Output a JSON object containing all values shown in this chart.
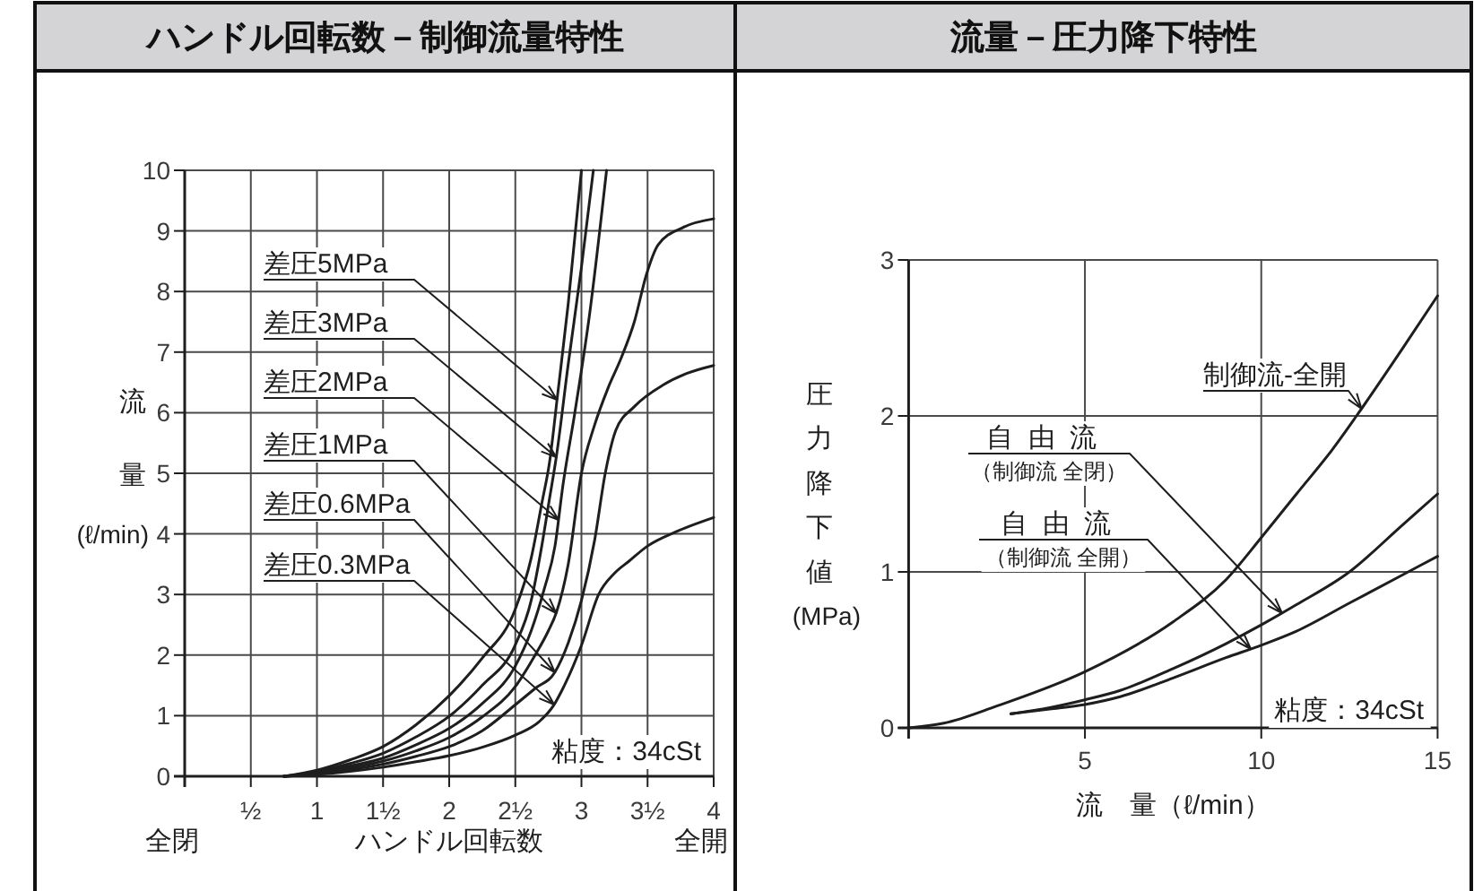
{
  "chart_data": [
    {
      "type": "line",
      "title": "ハンドル回転数－制御流量特性",
      "xlabel": "ハンドル回転数",
      "ylabel": "流量(ℓ/min)",
      "xlim": [
        0,
        4
      ],
      "ylim": [
        0,
        10
      ],
      "xticks": [
        {
          "value": 0.5,
          "label": "½"
        },
        1,
        {
          "value": 1.5,
          "label": "1½"
        },
        2,
        {
          "value": 2.5,
          "label": "2½"
        },
        3,
        {
          "value": 3.5,
          "label": "3½"
        },
        4
      ],
      "yticks": [
        0,
        1,
        2,
        3,
        4,
        5,
        6,
        7,
        8,
        9,
        10
      ],
      "grid": true,
      "series": [
        {
          "name": "差圧5MPa",
          "color": "#1e1e1e",
          "x": [
            0.75,
            1,
            1.25,
            1.5,
            1.75,
            2,
            2.25,
            2.5,
            2.62,
            2.7,
            2.76,
            2.82,
            2.9,
            3.0
          ],
          "values": [
            0,
            0.1,
            0.27,
            0.49,
            0.85,
            1.33,
            1.95,
            2.76,
            3.6,
            4.5,
            5.2,
            6.3,
            7.8,
            10
          ]
        },
        {
          "name": "差圧3MPa",
          "color": "#1e1e1e",
          "x": [
            0.75,
            1,
            1.25,
            1.5,
            1.75,
            2,
            2.25,
            2.5,
            2.62,
            2.7,
            2.76,
            2.81,
            2.9,
            3.0,
            3.09
          ],
          "values": [
            0,
            0.08,
            0.21,
            0.38,
            0.65,
            0.99,
            1.5,
            2.17,
            2.9,
            3.8,
            4.6,
            5.27,
            6.8,
            8.4,
            10
          ]
        },
        {
          "name": "差圧2MPa",
          "color": "#1e1e1e",
          "x": [
            0.75,
            1,
            1.25,
            1.5,
            1.75,
            2,
            2.25,
            2.5,
            2.62,
            2.72,
            2.8,
            2.86,
            2.95,
            3.06,
            3.19
          ],
          "values": [
            0,
            0.06,
            0.17,
            0.3,
            0.52,
            0.79,
            1.2,
            1.82,
            2.4,
            3.1,
            3.8,
            4.8,
            6.0,
            7.6,
            10
          ]
        },
        {
          "name": "差圧1MPa",
          "color": "#1e1e1e",
          "x": [
            0.75,
            1,
            1.25,
            1.5,
            1.75,
            2,
            2.25,
            2.5,
            2.65,
            2.75,
            2.81,
            2.9,
            3.0,
            3.1,
            3.2,
            3.3,
            3.4,
            3.49,
            3.58,
            3.77,
            4
          ],
          "values": [
            0,
            0.05,
            0.14,
            0.25,
            0.42,
            0.64,
            0.98,
            1.48,
            2.0,
            2.4,
            2.7,
            3.5,
            5.0,
            5.8,
            6.4,
            6.9,
            7.5,
            8.27,
            8.77,
            9.06,
            9.2
          ]
        },
        {
          "name": "差圧0.6MPa",
          "color": "#1e1e1e",
          "x": [
            0.75,
            1,
            1.25,
            1.5,
            1.75,
            2,
            2.25,
            2.5,
            2.65,
            2.8,
            2.9,
            3.0,
            3.1,
            3.18,
            3.26,
            3.4,
            3.62,
            3.8,
            4
          ],
          "values": [
            0,
            0.04,
            0.11,
            0.2,
            0.33,
            0.49,
            0.75,
            1.18,
            1.45,
            1.72,
            2.2,
            2.9,
            3.9,
            5.0,
            5.71,
            6.1,
            6.46,
            6.65,
            6.78
          ]
        },
        {
          "name": "差圧0.3MPa",
          "color": "#1e1e1e",
          "x": [
            0.75,
            1,
            1.25,
            1.5,
            1.75,
            2,
            2.25,
            2.5,
            2.68,
            2.79,
            2.86,
            3.0,
            3.13,
            3.25,
            3.36,
            3.5,
            3.72,
            4
          ],
          "values": [
            0,
            0.03,
            0.08,
            0.15,
            0.24,
            0.34,
            0.48,
            0.68,
            0.9,
            1.17,
            1.45,
            2.16,
            3.0,
            3.35,
            3.55,
            3.8,
            4.04,
            4.27
          ]
        }
      ],
      "annotations": [
        "全閉",
        "全開",
        "粘度：34cSt"
      ]
    },
    {
      "type": "line",
      "title": "流量－圧力降下特性",
      "xlabel": "流　量（ℓ/min）",
      "ylabel": "圧力降下値(MPa)",
      "xlim": [
        0,
        15
      ],
      "ylim": [
        0,
        3
      ],
      "xticks": [
        5,
        10,
        15
      ],
      "yticks": [
        0,
        1,
        2,
        3
      ],
      "grid": true,
      "series": [
        {
          "name": "制御流-全開",
          "color": "#1e1e1e",
          "x": [
            0,
            1,
            2.5,
            5,
            7.5,
            9,
            10,
            11,
            12,
            12.7,
            14,
            15
          ],
          "values": [
            0,
            0.03,
            0.14,
            0.36,
            0.68,
            0.95,
            1.22,
            1.5,
            1.78,
            2.0,
            2.43,
            2.77
          ]
        },
        {
          "name": "自由流（制御流 全閉）",
          "color": "#1e1e1e",
          "x": [
            2.9,
            4,
            5,
            6,
            7.5,
            9,
            10,
            11,
            12.5,
            14,
            15
          ],
          "values": [
            0.09,
            0.13,
            0.18,
            0.24,
            0.38,
            0.54,
            0.66,
            0.79,
            1.0,
            1.3,
            1.5
          ]
        },
        {
          "name": "自由流（制御流 全開）",
          "color": "#1e1e1e",
          "x": [
            2.9,
            4,
            5,
            6,
            7.5,
            9,
            10,
            11,
            12.5,
            14,
            15
          ],
          "values": [
            0.09,
            0.12,
            0.15,
            0.2,
            0.32,
            0.45,
            0.53,
            0.62,
            0.8,
            0.98,
            1.1
          ]
        }
      ],
      "annotations": [
        "粘度：34cSt"
      ]
    }
  ]
}
